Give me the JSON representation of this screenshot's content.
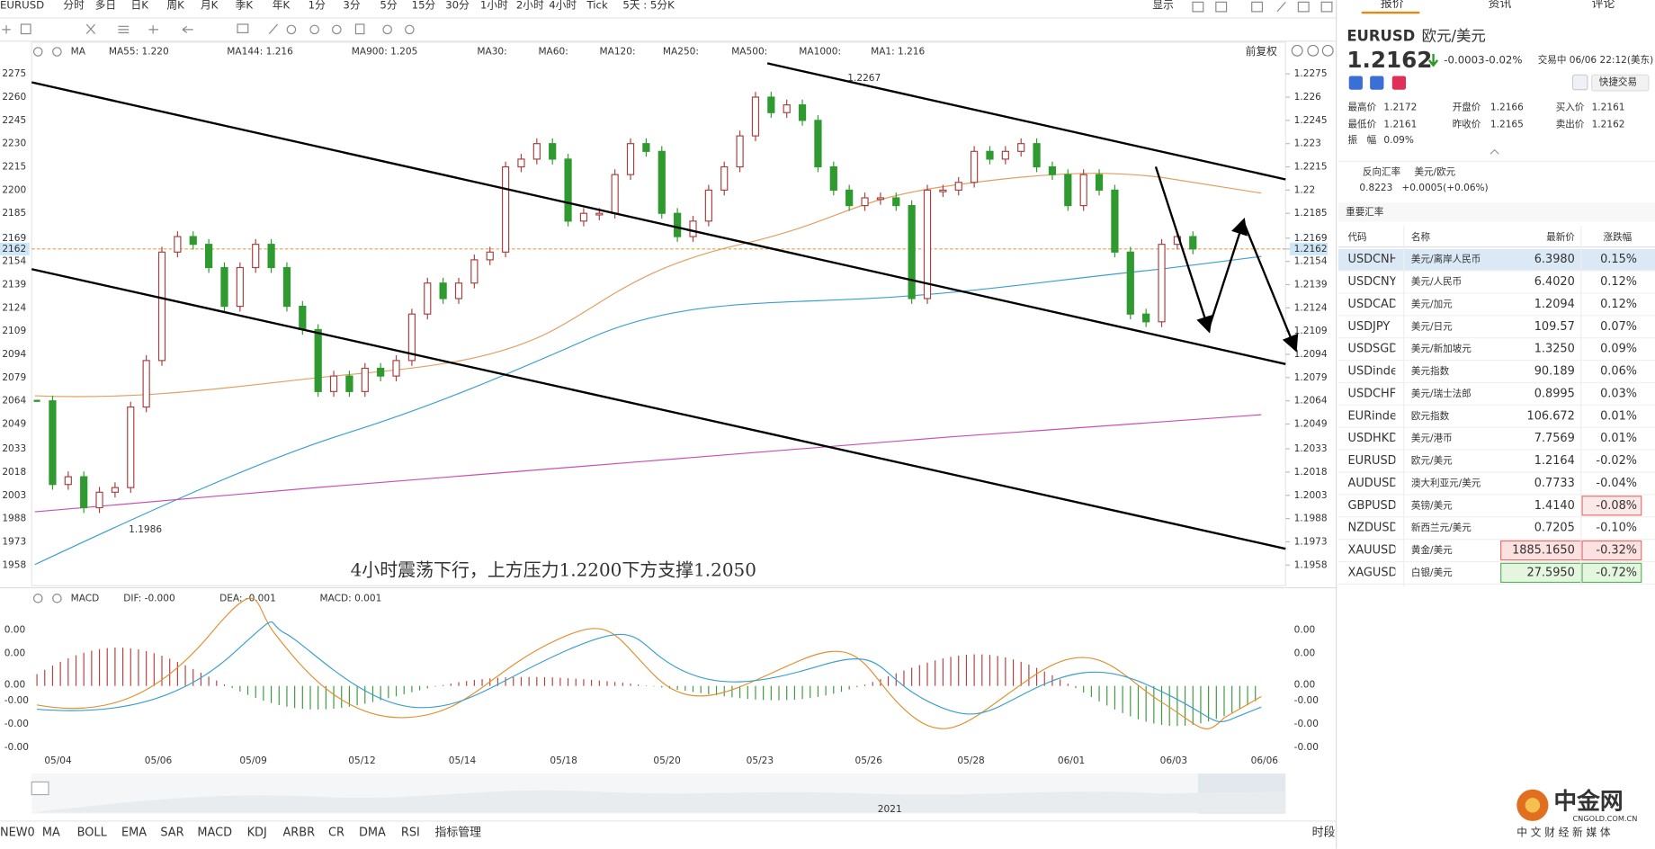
{
  "toolbar": {
    "symbol": "EURUSD",
    "periods": [
      "分时",
      "多日",
      "日K",
      "周K",
      "月K",
      "季K",
      "年K",
      "1分",
      "3分",
      "5分",
      "15分",
      "30分",
      "1小时",
      "2小时",
      "4小时",
      "Tick",
      "5天 : 5分K"
    ],
    "active": "4小时",
    "display": "显示"
  },
  "indicators": [
    {
      "text": "MA",
      "color": "#333333"
    },
    {
      "text": "MA55: 1.220",
      "color": "#e09030"
    },
    {
      "text": "MA144: 1.216",
      "color": "#3399cc"
    },
    {
      "text": "MA900: 1.205",
      "color": "#c03c9c"
    },
    {
      "text": "MA30:",
      "color": "#a8cce8"
    },
    {
      "text": "MA60:",
      "color": "#a8dce0"
    },
    {
      "text": "MA120:",
      "color": "#f0b0c8"
    },
    {
      "text": "MA250:",
      "color": "#b8c8f0"
    },
    {
      "text": "MA500:",
      "color": "#f0d090"
    },
    {
      "text": "MA1000:",
      "color": "#a8c0e0"
    },
    {
      "text": "MA1: 1.216",
      "color": "#444444"
    }
  ],
  "adjust": "前复权",
  "chart": {
    "type": "candlestick",
    "ylim": [
      1.1944,
      1.229
    ],
    "left_ticks": [
      {
        "value": 1.2275,
        "label": "2275"
      },
      {
        "value": 1.226,
        "label": "2260"
      },
      {
        "value": 1.2245,
        "label": "2245"
      },
      {
        "value": 1.223,
        "label": "2230"
      },
      {
        "value": 1.2215,
        "label": "2215"
      },
      {
        "value": 1.22,
        "label": "2200"
      },
      {
        "value": 1.2185,
        "label": "2185"
      },
      {
        "value": 1.2169,
        "label": "2169"
      },
      {
        "value": 1.2162,
        "label": "2162"
      },
      {
        "value": 1.2154,
        "label": "2154"
      },
      {
        "value": 1.2139,
        "label": "2139"
      },
      {
        "value": 1.2124,
        "label": "2124"
      },
      {
        "value": 1.2109,
        "label": "2109"
      },
      {
        "value": 1.2094,
        "label": "2094"
      },
      {
        "value": 1.2079,
        "label": "2079"
      },
      {
        "value": 1.2064,
        "label": "2064"
      },
      {
        "value": 1.2049,
        "label": "2049"
      },
      {
        "value": 1.2033,
        "label": "2033"
      },
      {
        "value": 1.2018,
        "label": "2018"
      },
      {
        "value": 1.2003,
        "label": "2003"
      },
      {
        "value": 1.1988,
        "label": "1988"
      },
      {
        "value": 1.1973,
        "label": "1973"
      },
      {
        "value": 1.1958,
        "label": "1958"
      }
    ],
    "right_ticks": [
      1.2275,
      1.226,
      1.2245,
      1.223,
      1.2215,
      1.22,
      1.2185,
      1.2169,
      1.2162,
      1.2154,
      1.2139,
      1.2124,
      1.2109,
      1.2094,
      1.2079,
      1.2064,
      1.2049,
      1.2033,
      1.2018,
      1.2003,
      1.1988,
      1.1973,
      1.1958
    ],
    "current": 1.2162,
    "closes": [
      1.2064,
      1.201,
      1.2015,
      1.1995,
      1.2005,
      1.2008,
      1.206,
      1.209,
      1.216,
      1.217,
      1.2165,
      1.215,
      1.2125,
      1.215,
      1.2165,
      1.215,
      1.2125,
      1.211,
      1.207,
      1.208,
      1.207,
      1.2085,
      1.208,
      1.209,
      1.212,
      1.214,
      1.213,
      1.214,
      1.2155,
      1.216,
      1.2215,
      1.222,
      1.223,
      1.222,
      1.218,
      1.2185,
      1.2185,
      1.221,
      1.223,
      1.2225,
      1.2185,
      1.217,
      1.218,
      1.22,
      1.2215,
      1.2235,
      1.226,
      1.225,
      1.2255,
      1.2245,
      1.2215,
      1.22,
      1.219,
      1.2195,
      1.2195,
      1.219,
      1.213,
      1.22,
      1.22,
      1.2205,
      1.2225,
      1.222,
      1.2225,
      1.223,
      1.2215,
      1.221,
      1.219,
      1.221,
      1.22,
      1.216,
      1.212,
      1.2115,
      1.2165,
      1.217,
      1.2162
    ],
    "dates": [
      "05/04",
      "05/06",
      "05/09",
      "05/12",
      "05/14",
      "05/18",
      "05/20",
      "05/23",
      "05/26",
      "05/28",
      "06/01",
      "06/03",
      "06/06"
    ],
    "high_label": "1.2267",
    "low_label": "1.1986",
    "note": "4小时震荡下行，上方压力1.2200下方支撑1.2050"
  },
  "macd": {
    "title": "MACD",
    "dif": "DIF: -0.000",
    "dea": "DEA: -0.001",
    "macd": "MACD: 0.001",
    "axis_labels": [
      "0.00",
      "0.00",
      "0.00",
      "-0.00",
      "-0.00",
      "-0.00"
    ]
  },
  "year": "2021",
  "bottom_bar": {
    "items": [
      "NEW0",
      "MA",
      "BOLL",
      "EMA",
      "SAR",
      "MACD",
      "KDJ",
      "ARBR",
      "CR",
      "DMA",
      "RSI",
      "指标管理"
    ],
    "active": [
      "MA",
      "MACD",
      "指标管理"
    ],
    "session": "时段"
  },
  "panel": {
    "tabs": [
      "报价",
      "资讯",
      "评论"
    ],
    "symbol": "EURUSD",
    "name": "欧元/美元",
    "price": "1.2162",
    "change": "-0.0003",
    "change_pct": "-0.02%",
    "status": "交易中 06/06 22:12(美东)",
    "quick_trade": "快捷交易",
    "stats": [
      [
        "最高价",
        "1.2172"
      ],
      [
        "开盘价",
        "1.2166"
      ],
      [
        "买入价",
        "1.2161"
      ],
      [
        "最低价",
        "1.2161"
      ],
      [
        "昨收价",
        "1.2165"
      ],
      [
        "卖出价",
        "1.2162"
      ],
      [
        "振　幅",
        "0.09%"
      ]
    ],
    "reverse": {
      "label": "反向汇率",
      "pair": "美元/欧元",
      "price": "0.8223",
      "change": "+0.0005(+0.06%)"
    },
    "section": "重要汇率",
    "table": {
      "header": [
        "代码",
        "名称",
        "最新价",
        "涨跌幅"
      ],
      "rows": [
        [
          "USDCNH",
          "美元/离岸人民币",
          "6.3980",
          "0.15%"
        ],
        [
          "USDCNY",
          "美元/人民币",
          "6.4020",
          "0.12%"
        ],
        [
          "USDCAD",
          "美元/加元",
          "1.2094",
          "0.12%"
        ],
        [
          "USDJPY",
          "美元/日元",
          "109.57",
          "0.07%"
        ],
        [
          "USDSGD",
          "美元/新加坡元",
          "1.3250",
          "0.09%"
        ],
        [
          "USDindex",
          "美元指数",
          "90.189",
          "0.06%"
        ],
        [
          "USDCHF",
          "美元/瑞士法郎",
          "0.8995",
          "0.03%"
        ],
        [
          "EURindex",
          "欧元指数",
          "106.672",
          "0.01%"
        ],
        [
          "USDHKD",
          "美元/港币",
          "7.7569",
          "0.01%"
        ],
        [
          "EURUSD",
          "欧元/美元",
          "1.2164",
          "-0.02%"
        ],
        [
          "AUDUSD",
          "澳大利亚元/美元",
          "0.7733",
          "-0.04%"
        ],
        [
          "GBPUSD",
          "英镑/美元",
          "1.4140",
          "-0.08%"
        ],
        [
          "NZDUSD",
          "新西兰元/美元",
          "0.7205",
          "-0.10%"
        ],
        [
          "XAUUSD",
          "黄金/美元",
          "1885.1650",
          "-0.32%"
        ],
        [
          "XAGUSD",
          "白银/美元",
          "27.5950",
          "-0.72%"
        ]
      ]
    }
  },
  "watermark": {
    "brand": "中金网",
    "url": "CNGOLD.COM.CN",
    "slogan": "中 文 财 经 新 媒 体"
  }
}
